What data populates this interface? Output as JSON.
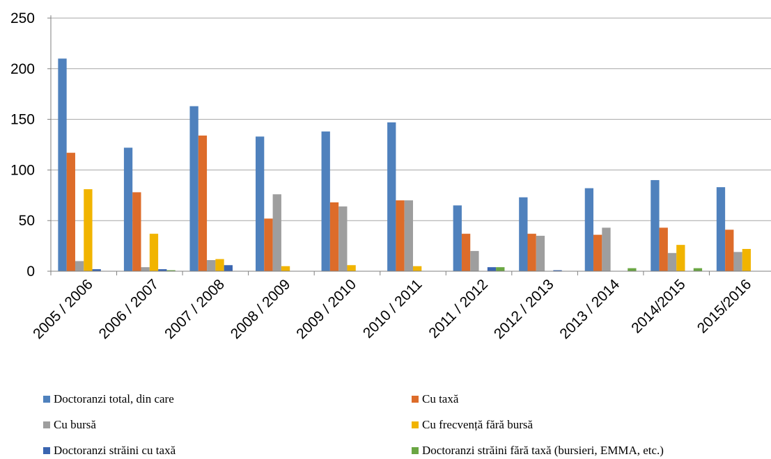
{
  "chart_data": {
    "type": "bar",
    "categories": [
      "2005 / 2006",
      "2006 / 2007",
      "2007 / 2008",
      "2008 / 2009",
      "2009 / 2010",
      "2010 / 2011",
      "2011 / 2012",
      "2012 / 2013",
      "2013 / 2014",
      "2014/2015",
      "2015/2016"
    ],
    "ylim": [
      0,
      250
    ],
    "yticks": [
      0,
      50,
      100,
      150,
      200,
      250
    ],
    "ytick_labels": [
      "0",
      "50",
      "100",
      "150",
      "200",
      "250"
    ],
    "grid": true,
    "legend_position": "bottom",
    "series": [
      {
        "name": "Doctoranzi total, din care",
        "color": "#4f81bd",
        "values": [
          210,
          122,
          163,
          133,
          138,
          147,
          65,
          73,
          82,
          90,
          83
        ]
      },
      {
        "name": "Cu taxă",
        "color": "#dd6c2a",
        "values": [
          117,
          78,
          134,
          52,
          68,
          70,
          37,
          37,
          36,
          43,
          41
        ]
      },
      {
        "name": "Cu bursă",
        "color": "#9e9e9e",
        "values": [
          10,
          4,
          11,
          76,
          64,
          70,
          20,
          35,
          43,
          18,
          19
        ]
      },
      {
        "name": "Cu frecvență fără bursă",
        "color": "#f1b400",
        "values": [
          81,
          37,
          12,
          5,
          6,
          5,
          0,
          0,
          0,
          26,
          22
        ]
      },
      {
        "name": "Doctoranzi străini cu taxă",
        "color": "#3a65b0",
        "values": [
          2,
          2,
          6,
          0,
          0,
          0,
          4,
          1,
          0,
          0,
          0
        ]
      },
      {
        "name": "Doctoranzi străini fără taxă (bursieri, EMMA, etc.)",
        "color": "#6aa643",
        "values": [
          0,
          1,
          0,
          0,
          0,
          0,
          4,
          0,
          3,
          3,
          0
        ]
      }
    ]
  }
}
